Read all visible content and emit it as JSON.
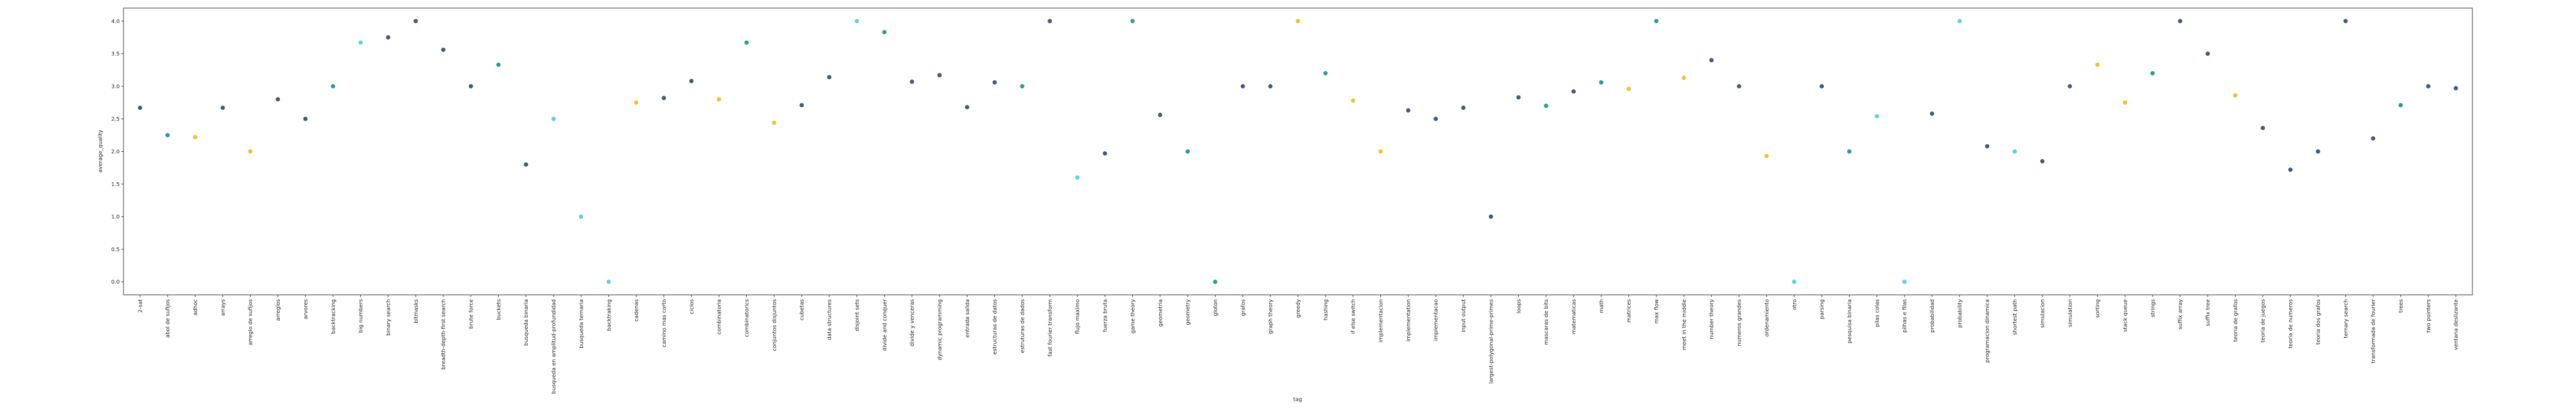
{
  "chart_data": {
    "type": "scatter",
    "x_label": "tag",
    "y_label": "average_quality",
    "categories": [
      "2-sat",
      "abol de sufijos",
      "adhoc",
      "arrays",
      "arreglo de sufijos",
      "arreglos",
      "arvores",
      "backtracking",
      "big numbers",
      "binary search",
      "bitmasks",
      "breadth-depth-first search",
      "brute force",
      "buckets",
      "busqueda binaria",
      "busqueda en amplitud-profundidad",
      "busqueda ternaria",
      "backtraking",
      "cadenas",
      "camino mas corto",
      "ciclos",
      "combinatoria",
      "combinatorics",
      "conjuntos disjuntos",
      "cubetas",
      "data structures",
      "disjoint sets",
      "divide and conquer",
      "divide y venceras",
      "dynamic programming",
      "entrada salida",
      "estructuras de datos",
      "estruturas de dados",
      "fast fourier transform",
      "flujo maximo",
      "fuerza bruta",
      "game theory",
      "geometria",
      "geometry",
      "gloton",
      "grafos",
      "graph theory",
      "greedy",
      "hashing",
      "if else switch",
      "implementacion",
      "implementation",
      "implementacao",
      "input output",
      "largest-polygonal-prime-primes",
      "loops",
      "mascaras de bits",
      "matematicas",
      "math",
      "matrices",
      "max flow",
      "meet in the middle",
      "number theory",
      "numeros grandes",
      "ordenamiento",
      "otro",
      "parsing",
      "pesquisa binaria",
      "pilas colas",
      "pilhas e filas",
      "probabilidad",
      "probability",
      "programacion dinamica",
      "shortest path",
      "simulacion",
      "simulation",
      "sorting",
      "stack queue",
      "strings",
      "suffix array",
      "suffix tree",
      "teoria de grafos",
      "teoria de juegos",
      "teoria de numeros",
      "teoria dos grafos",
      "ternary search",
      "transformada de fourier",
      "trees",
      "two pointers",
      "ventana deslizante"
    ],
    "values": [
      2.67,
      2.25,
      2.22,
      2.67,
      2.0,
      2.8,
      2.5,
      3.0,
      3.67,
      3.75,
      4.0,
      3.56,
      3.0,
      3.33,
      1.8,
      2.5,
      1.0,
      0.0,
      2.75,
      2.82,
      3.08,
      2.8,
      3.67,
      2.44,
      2.71,
      3.14,
      4.0,
      3.83,
      3.07,
      3.17,
      2.68,
      3.06,
      3.0,
      4.0,
      1.6,
      1.97,
      4.0,
      2.56,
      2.0,
      0.0,
      3.0,
      3.0,
      4.0,
      3.2,
      2.78,
      2.0,
      2.63,
      2.5,
      2.67,
      1.0,
      2.83,
      2.7,
      2.92,
      3.06,
      2.96,
      4.0,
      3.13,
      3.4,
      3.0,
      1.93,
      0.0,
      3.0,
      2.0,
      2.54,
      0.0,
      2.58,
      4.0,
      2.08,
      2.0,
      1.85,
      3.0,
      3.33,
      2.75,
      3.2,
      4.0,
      3.5,
      2.86,
      2.36,
      1.72,
      2.0,
      4.0,
      2.2,
      2.71,
      3.0,
      2.97
    ],
    "colors": [
      "#46577d",
      "#2a9d8f",
      "#f2c12e",
      "#46577d",
      "#f2c12e",
      "#46577d",
      "#46577d",
      "#2a9d8f",
      "#5ad2e0",
      "#46577d",
      "#46577d",
      "#46577d",
      "#46577d",
      "#2a9d8f",
      "#46577d",
      "#5ad2e0",
      "#5ad2e0",
      "#5ad2e0",
      "#f2c12e",
      "#46577d",
      "#46577d",
      "#f2c12e",
      "#2a9d8f",
      "#f2c12e",
      "#46577d",
      "#46577d",
      "#5ad2e0",
      "#2a9d8f",
      "#46577d",
      "#46577d",
      "#46577d",
      "#46577d",
      "#2a9d8f",
      "#46577d",
      "#5ad2e0",
      "#46577d",
      "#2a9d8f",
      "#46577d",
      "#2a9d8f",
      "#2a9d8f",
      "#46577d",
      "#46577d",
      "#f2c12e",
      "#2a9d8f",
      "#f2c12e",
      "#f2c12e",
      "#46577d",
      "#46577d",
      "#46577d",
      "#46577d",
      "#46577d",
      "#2a9d8f",
      "#46577d",
      "#2a9d8f",
      "#f2c12e",
      "#2a9d8f",
      "#f2c12e",
      "#46577d",
      "#46577d",
      "#f2c12e",
      "#5ad2e0",
      "#46577d",
      "#2a9d8f",
      "#5ad2e0",
      "#5ad2e0",
      "#46577d",
      "#5ad2e0",
      "#46577d",
      "#5ad2e0",
      "#46577d",
      "#46577d",
      "#f2c12e",
      "#f2c12e",
      "#2a9d8f",
      "#46577d",
      "#46577d",
      "#f2c12e",
      "#46577d",
      "#46577d",
      "#46577d",
      "#46577d",
      "#46577d",
      "#2a9d8f",
      "#46577d",
      "#46577d"
    ],
    "ylim": [
      -0.2,
      4.2
    ],
    "yticks": [
      {
        "value": 0,
        "label": "0.0"
      },
      {
        "value": 0.5,
        "label": "0.5"
      },
      {
        "value": 1,
        "label": "1.0"
      },
      {
        "value": 1.5,
        "label": "1.5"
      },
      {
        "value": 2,
        "label": "2.0"
      },
      {
        "value": 2.5,
        "label": "2.5"
      },
      {
        "value": 3,
        "label": "3.0"
      },
      {
        "value": 3.5,
        "label": "3.5"
      },
      {
        "value": 4,
        "label": "4.0"
      }
    ]
  }
}
